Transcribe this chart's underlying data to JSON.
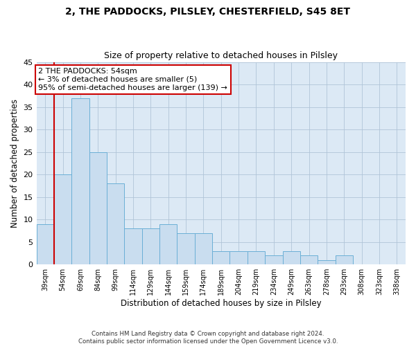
{
  "title": "2, THE PADDOCKS, PILSLEY, CHESTERFIELD, S45 8ET",
  "subtitle": "Size of property relative to detached houses in Pilsley",
  "xlabel": "Distribution of detached houses by size in Pilsley",
  "ylabel": "Number of detached properties",
  "categories": [
    "39sqm",
    "54sqm",
    "69sqm",
    "84sqm",
    "99sqm",
    "114sqm",
    "129sqm",
    "144sqm",
    "159sqm",
    "174sqm",
    "189sqm",
    "204sqm",
    "219sqm",
    "234sqm",
    "249sqm",
    "263sqm",
    "278sqm",
    "293sqm",
    "308sqm",
    "323sqm",
    "338sqm"
  ],
  "values": [
    9,
    20,
    37,
    25,
    18,
    8,
    8,
    9,
    7,
    7,
    3,
    3,
    3,
    2,
    3,
    2,
    1,
    2,
    0,
    0,
    0
  ],
  "bar_color": "#c9ddef",
  "bar_edge_color": "#6aafd6",
  "highlight_line_color": "#cc0000",
  "annotation_text": "2 THE PADDOCKS: 54sqm\n← 3% of detached houses are smaller (5)\n95% of semi-detached houses are larger (139) →",
  "annotation_box_color": "#ffffff",
  "annotation_box_edge": "#cc0000",
  "footer_line1": "Contains HM Land Registry data © Crown copyright and database right 2024.",
  "footer_line2": "Contains public sector information licensed under the Open Government Licence v3.0.",
  "ylim": [
    0,
    45
  ],
  "yticks": [
    0,
    5,
    10,
    15,
    20,
    25,
    30,
    35,
    40,
    45
  ],
  "ax_facecolor": "#dce9f5",
  "background_color": "#ffffff",
  "grid_color": "#b0c4d8"
}
